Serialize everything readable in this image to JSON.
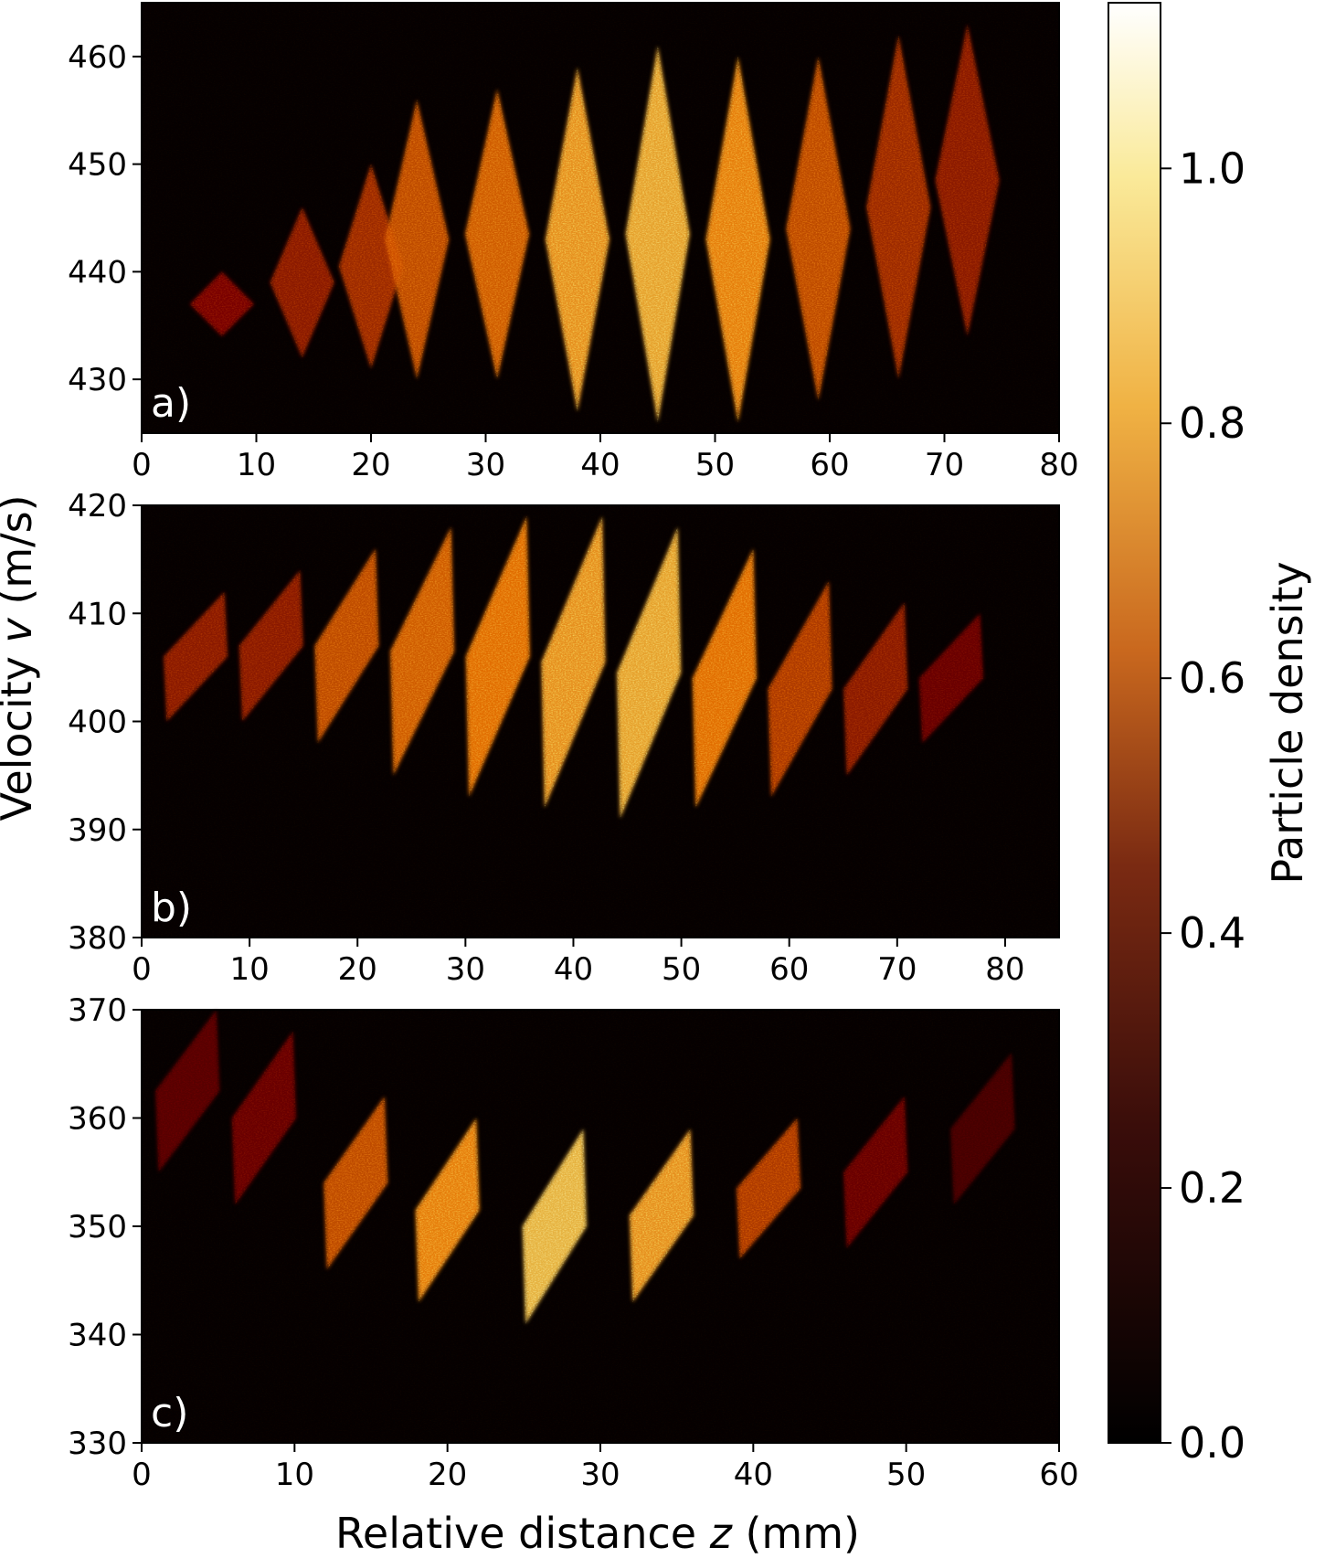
{
  "chart_data": [
    {
      "type": "heatmap",
      "panel_label": "a)",
      "x_ticks": [
        "0",
        "10",
        "20",
        "30",
        "40",
        "50",
        "60",
        "70",
        "80"
      ],
      "xlim": [
        0,
        80
      ],
      "y_ticks": [
        "430",
        "440",
        "450",
        "460"
      ],
      "ylim": [
        425,
        465
      ],
      "bands": [
        {
          "z": 7,
          "v_low": 434,
          "v_high": 440,
          "peak": 0.35
        },
        {
          "z": 14,
          "v_low": 432,
          "v_high": 446,
          "peak": 0.4
        },
        {
          "z": 20,
          "v_low": 431,
          "v_high": 450,
          "peak": 0.45
        },
        {
          "z": 24,
          "v_low": 430,
          "v_high": 456,
          "peak": 0.55
        },
        {
          "z": 31,
          "v_low": 430,
          "v_high": 457,
          "peak": 0.6
        },
        {
          "z": 38,
          "v_low": 427,
          "v_high": 459,
          "peak": 0.75
        },
        {
          "z": 45,
          "v_low": 426,
          "v_high": 461,
          "peak": 0.8
        },
        {
          "z": 52,
          "v_low": 426,
          "v_high": 460,
          "peak": 0.7
        },
        {
          "z": 59,
          "v_low": 428,
          "v_high": 460,
          "peak": 0.55
        },
        {
          "z": 66,
          "v_low": 430,
          "v_high": 462,
          "peak": 0.45
        },
        {
          "z": 72,
          "v_low": 434,
          "v_high": 463,
          "peak": 0.4
        }
      ]
    },
    {
      "type": "heatmap",
      "panel_label": "b)",
      "x_ticks": [
        "0",
        "10",
        "20",
        "30",
        "40",
        "50",
        "60",
        "70",
        "80"
      ],
      "xlim": [
        0,
        85
      ],
      "y_ticks": [
        "380",
        "390",
        "400",
        "410",
        "420"
      ],
      "ylim": [
        380,
        420
      ],
      "bands": [
        {
          "z": 5,
          "v_low": 400,
          "v_high": 412,
          "peak": 0.4
        },
        {
          "z": 12,
          "v_low": 400,
          "v_high": 414,
          "peak": 0.4
        },
        {
          "z": 19,
          "v_low": 398,
          "v_high": 416,
          "peak": 0.55
        },
        {
          "z": 26,
          "v_low": 395,
          "v_high": 418,
          "peak": 0.6
        },
        {
          "z": 33,
          "v_low": 393,
          "v_high": 419,
          "peak": 0.65
        },
        {
          "z": 40,
          "v_low": 392,
          "v_high": 419,
          "peak": 0.75
        },
        {
          "z": 47,
          "v_low": 391,
          "v_high": 418,
          "peak": 0.8
        },
        {
          "z": 54,
          "v_low": 392,
          "v_high": 416,
          "peak": 0.65
        },
        {
          "z": 61,
          "v_low": 393,
          "v_high": 413,
          "peak": 0.5
        },
        {
          "z": 68,
          "v_low": 395,
          "v_high": 411,
          "peak": 0.4
        },
        {
          "z": 75,
          "v_low": 398,
          "v_high": 410,
          "peak": 0.3
        }
      ]
    },
    {
      "type": "heatmap",
      "panel_label": "c)",
      "x_ticks": [
        "0",
        "10",
        "20",
        "30",
        "40",
        "50",
        "60"
      ],
      "xlim": [
        0,
        60
      ],
      "y_ticks": [
        "330",
        "340",
        "350",
        "360",
        "370"
      ],
      "ylim": [
        330,
        370
      ],
      "bands": [
        {
          "z": 3,
          "v_low": 355,
          "v_high": 370,
          "peak": 0.25
        },
        {
          "z": 8,
          "v_low": 352,
          "v_high": 368,
          "peak": 0.3
        },
        {
          "z": 14,
          "v_low": 346,
          "v_high": 362,
          "peak": 0.55
        },
        {
          "z": 20,
          "v_low": 343,
          "v_high": 360,
          "peak": 0.7
        },
        {
          "z": 27,
          "v_low": 341,
          "v_high": 359,
          "peak": 0.85
        },
        {
          "z": 34,
          "v_low": 343,
          "v_high": 359,
          "peak": 0.75
        },
        {
          "z": 41,
          "v_low": 347,
          "v_high": 360,
          "peak": 0.5
        },
        {
          "z": 48,
          "v_low": 348,
          "v_high": 362,
          "peak": 0.3
        },
        {
          "z": 55,
          "v_low": 352,
          "v_high": 366,
          "peak": 0.2
        }
      ]
    }
  ],
  "xlabel_text": "Relative distance ",
  "xlabel_var": "z",
  "xlabel_unit": " (mm)",
  "ylabel_text": "Velocity ",
  "ylabel_var": "v",
  "ylabel_unit": " (m/s)",
  "colorbar": {
    "label": "Particle density",
    "ticks": [
      "0.0",
      "0.2",
      "0.4",
      "0.6",
      "0.8",
      "1.0"
    ],
    "range": [
      0,
      1.13
    ],
    "colormap": "afmhot"
  }
}
